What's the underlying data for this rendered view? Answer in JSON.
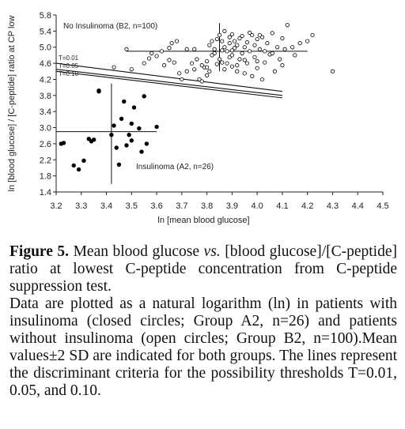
{
  "chart_data": {
    "type": "scatter",
    "xlabel": "ln [mean blood glucose]",
    "ylabel": "ln [blood glucose] / [C-peptide] ratio at CP low",
    "xlim": [
      3.2,
      4.5
    ],
    "ylim": [
      1.4,
      5.8
    ],
    "x_ticks": [
      "3.2",
      "3.3",
      "3.4",
      "3.5",
      "3.6",
      "3.7",
      "3.8",
      "3.9",
      "4.0",
      "4.1",
      "4.2",
      "4.3",
      "4.4",
      "4.5"
    ],
    "y_ticks": [
      "1.4",
      "1.8",
      "2.2",
      "2.6",
      "3.0",
      "3.4",
      "3.8",
      "4.2",
      "4.6",
      "5.0",
      "5.4",
      "5.8"
    ],
    "grid": false,
    "annotations": {
      "no_insulinoma": "No Insulinoma (B2, n=100)",
      "insulinoma": "Insulinoma (A2, n=26)",
      "t001": "T=0.01",
      "t005": "T=0.05",
      "t010": "T=0.10"
    },
    "series": [
      {
        "name": "Insulinoma (A2, n=26)",
        "marker": "filled-circle",
        "points": [
          [
            3.22,
            2.6
          ],
          [
            3.23,
            2.62
          ],
          [
            3.27,
            2.06
          ],
          [
            3.29,
            1.96
          ],
          [
            3.31,
            2.18
          ],
          [
            3.33,
            2.72
          ],
          [
            3.34,
            2.66
          ],
          [
            3.35,
            2.7
          ],
          [
            3.37,
            3.92
          ],
          [
            3.37,
            3.9
          ],
          [
            3.42,
            2.82
          ],
          [
            3.43,
            3.05
          ],
          [
            3.44,
            2.5
          ],
          [
            3.45,
            2.08
          ],
          [
            3.46,
            3.22
          ],
          [
            3.47,
            3.65
          ],
          [
            3.48,
            2.56
          ],
          [
            3.49,
            2.82
          ],
          [
            3.5,
            2.68
          ],
          [
            3.5,
            3.1
          ],
          [
            3.51,
            3.5
          ],
          [
            3.53,
            2.98
          ],
          [
            3.54,
            2.4
          ],
          [
            3.55,
            3.78
          ],
          [
            3.56,
            2.6
          ],
          [
            3.6,
            3.02
          ]
        ],
        "mean_sd_cross": {
          "x_center": 3.42,
          "x_range": [
            3.2,
            3.6
          ],
          "y_center": 2.9,
          "y_range": [
            1.6,
            4.1
          ]
        }
      },
      {
        "name": "No Insulinoma (B2, n=100)",
        "marker": "open-circle",
        "points": [
          [
            3.43,
            4.5
          ],
          [
            3.48,
            4.95
          ],
          [
            3.5,
            4.45
          ],
          [
            3.55,
            4.6
          ],
          [
            3.57,
            4.72
          ],
          [
            3.58,
            4.85
          ],
          [
            3.6,
            4.78
          ],
          [
            3.62,
            4.9
          ],
          [
            3.63,
            4.55
          ],
          [
            3.65,
            4.68
          ],
          [
            3.65,
            4.98
          ],
          [
            3.66,
            5.1
          ],
          [
            3.68,
            5.15
          ],
          [
            3.69,
            4.35
          ],
          [
            3.7,
            4.2
          ],
          [
            3.72,
            4.4
          ],
          [
            3.74,
            4.6
          ],
          [
            3.75,
            4.95
          ],
          [
            3.76,
            4.7
          ],
          [
            3.77,
            4.2
          ],
          [
            3.78,
            4.15
          ],
          [
            3.79,
            4.5
          ],
          [
            3.8,
            4.3
          ],
          [
            3.8,
            4.65
          ],
          [
            3.81,
            5.05
          ],
          [
            3.81,
            4.4
          ],
          [
            3.82,
            4.8
          ],
          [
            3.83,
            4.95
          ],
          [
            3.83,
            4.85
          ],
          [
            3.84,
            5.2
          ],
          [
            3.84,
            4.58
          ],
          [
            3.85,
            5.3
          ],
          [
            3.85,
            4.7
          ],
          [
            3.86,
            5.15
          ],
          [
            3.86,
            4.92
          ],
          [
            3.87,
            5.0
          ],
          [
            3.87,
            4.45
          ],
          [
            3.87,
            5.4
          ],
          [
            3.88,
            4.9
          ],
          [
            3.88,
            4.6
          ],
          [
            3.89,
            5.25
          ],
          [
            3.89,
            5.1
          ],
          [
            3.89,
            4.75
          ],
          [
            3.9,
            5.32
          ],
          [
            3.9,
            4.8
          ],
          [
            3.9,
            4.52
          ],
          [
            3.91,
            5.15
          ],
          [
            3.91,
            4.98
          ],
          [
            3.92,
            4.4
          ],
          [
            3.92,
            5.05
          ],
          [
            3.93,
            5.22
          ],
          [
            3.93,
            4.7
          ],
          [
            3.94,
            4.85
          ],
          [
            3.94,
            5.28
          ],
          [
            3.95,
            4.35
          ],
          [
            3.95,
            5.0
          ],
          [
            3.96,
            4.6
          ],
          [
            3.96,
            5.12
          ],
          [
            3.97,
            4.9
          ],
          [
            3.98,
            5.3
          ],
          [
            3.98,
            4.28
          ],
          [
            3.99,
            4.75
          ],
          [
            3.99,
            5.05
          ],
          [
            4.0,
            4.48
          ],
          [
            4.0,
            5.2
          ],
          [
            4.01,
            4.95
          ],
          [
            4.02,
            5.25
          ],
          [
            4.02,
            4.2
          ],
          [
            4.03,
            4.62
          ],
          [
            4.04,
            5.1
          ],
          [
            4.05,
            4.82
          ],
          [
            4.06,
            5.35
          ],
          [
            4.07,
            4.4
          ],
          [
            4.08,
            5.0
          ],
          [
            4.09,
            4.7
          ],
          [
            4.1,
            5.22
          ],
          [
            4.1,
            4.55
          ],
          [
            4.11,
            4.95
          ],
          [
            4.12,
            5.55
          ],
          [
            4.14,
            5.0
          ],
          [
            4.15,
            4.8
          ],
          [
            4.17,
            5.1
          ],
          [
            4.2,
            5.15
          ],
          [
            4.22,
            5.3
          ],
          [
            4.3,
            4.4
          ],
          [
            3.78,
            4.55
          ],
          [
            3.8,
            4.5
          ],
          [
            3.92,
            4.55
          ],
          [
            3.95,
            4.68
          ],
          [
            4.0,
            4.65
          ],
          [
            3.86,
            4.62
          ],
          [
            3.9,
            4.92
          ],
          [
            4.03,
            4.9
          ],
          [
            3.97,
            5.36
          ],
          [
            3.82,
            5.15
          ],
          [
            3.72,
            4.95
          ],
          [
            3.67,
            4.62
          ],
          [
            3.75,
            4.45
          ],
          [
            4.06,
            4.85
          ],
          [
            4.01,
            5.3
          ]
        ],
        "mean_sd_cross": {
          "x_center": 3.85,
          "x_range": [
            3.48,
            4.2
          ],
          "y_center": 4.9,
          "y_range": [
            4.4,
            5.6
          ]
        }
      }
    ],
    "discriminant_lines": [
      {
        "label": "T=0.01",
        "from": [
          3.2,
          4.6
        ],
        "to": [
          4.1,
          3.9
        ]
      },
      {
        "label": "T=0.05",
        "from": [
          3.2,
          4.45
        ],
        "to": [
          4.1,
          3.8
        ]
      },
      {
        "label": "T=0.10",
        "from": [
          3.2,
          4.4
        ],
        "to": [
          4.1,
          3.74
        ]
      }
    ]
  },
  "caption": {
    "figure_label": "Figure 5.",
    "title_part1": " Mean blood glucose ",
    "title_vs": "vs.",
    "title_part2": " [blood glucose]/[C-peptide] ratio at lowest C-peptide concentration from C-peptide suppression test.",
    "body": "Data are plotted as a natural logarithm (ln) in patients with insulinoma (closed circles; Group A2, n=26) and patients without insulinoma (open circles; Group B2, n=100).Mean values±2 SD are indicated for both groups. The lines represent the discriminant criteria for the possibility thresholds T=0.01, 0.05, and 0.10."
  }
}
